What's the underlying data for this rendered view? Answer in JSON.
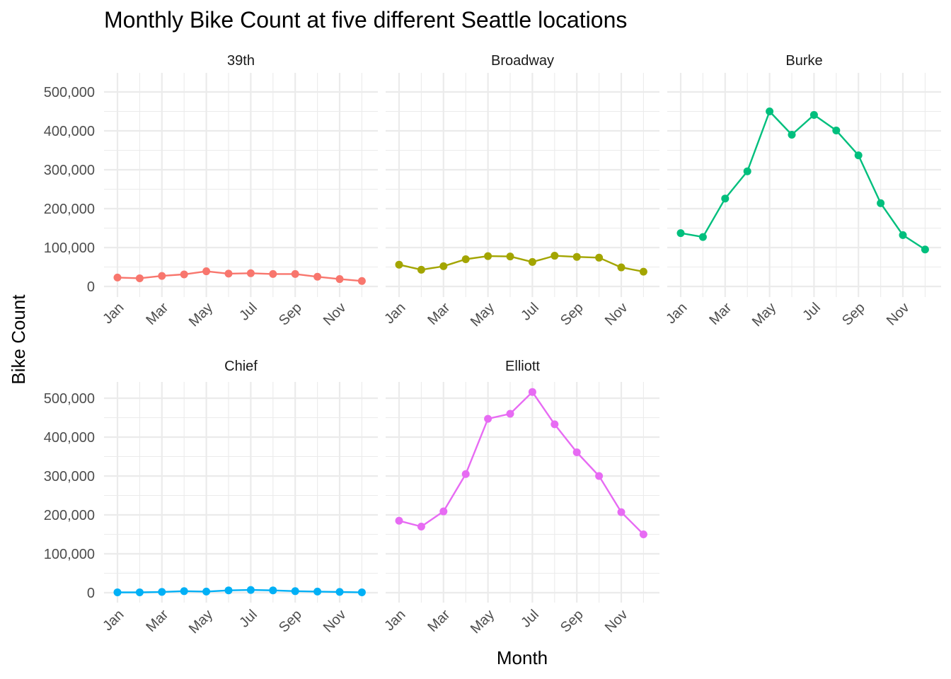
{
  "chart_data": {
    "type": "line",
    "title": "Monthly Bike Count at five different Seattle locations",
    "xlabel": "Month",
    "ylabel": "Bike Count",
    "x_ticks": [
      "Jan",
      "Mar",
      "May",
      "Jul",
      "Sep",
      "Nov"
    ],
    "y_ticks": [
      "0",
      "100,000",
      "200,000",
      "300,000",
      "400,000",
      "500,000"
    ],
    "ylim": [
      0,
      500000
    ],
    "x": [
      "Jan",
      "Feb",
      "Mar",
      "Apr",
      "May",
      "Jun",
      "Jul",
      "Aug",
      "Sep",
      "Oct",
      "Nov",
      "Dec"
    ],
    "grid": true,
    "facets": [
      {
        "name": "39th",
        "color": "#F8766D",
        "values": [
          23000,
          21000,
          27000,
          31000,
          39000,
          33000,
          34000,
          32000,
          32000,
          25000,
          19000,
          14000
        ]
      },
      {
        "name": "Broadway",
        "color": "#A3A500",
        "values": [
          56000,
          43000,
          52000,
          70000,
          78000,
          77000,
          63000,
          79000,
          76000,
          74000,
          49000,
          38000
        ]
      },
      {
        "name": "Burke",
        "color": "#00BF7D",
        "values": [
          137000,
          127000,
          226000,
          296000,
          450000,
          390000,
          441000,
          401000,
          337000,
          214000,
          132000,
          95000
        ]
      },
      {
        "name": "Chief",
        "color": "#00B0F6",
        "values": [
          1000,
          1000,
          2000,
          4000,
          3000,
          6000,
          7000,
          6000,
          4000,
          3000,
          2000,
          1000
        ]
      },
      {
        "name": "Elliott",
        "color": "#E76BF3",
        "values": [
          185000,
          170000,
          209000,
          305000,
          447000,
          460000,
          516000,
          433000,
          361000,
          300000,
          207000,
          150000
        ]
      }
    ]
  }
}
